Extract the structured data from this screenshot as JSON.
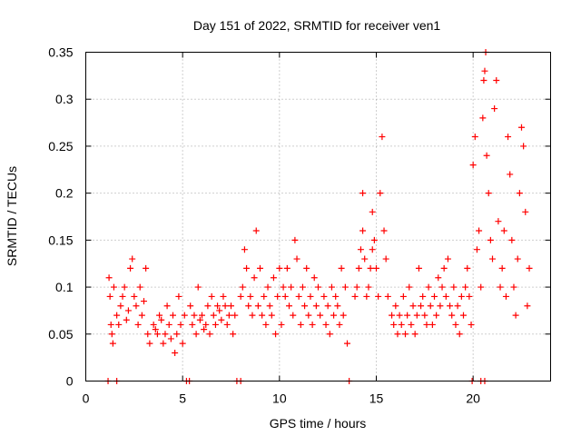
{
  "chart_data": {
    "type": "scatter",
    "title": "Day 151 of 2022, SRMTID for receiver ven1",
    "xlabel": "GPS time / hours",
    "ylabel": "SRMTID / TECUs",
    "xlim": [
      0,
      24
    ],
    "ylim": [
      0,
      0.35
    ],
    "xticks": [
      0,
      5,
      10,
      15,
      20
    ],
    "xtick_labels": [
      "0",
      "5",
      "10",
      "15",
      "20"
    ],
    "yticks": [
      0,
      0.05,
      0.1,
      0.15,
      0.2,
      0.25,
      0.3,
      0.35
    ],
    "ytick_labels": [
      "0",
      "0.05",
      "0.1",
      "0.15",
      "0.2",
      "0.25",
      "0.3",
      "0.35"
    ],
    "grid": true,
    "marker": "+",
    "color": "#ff0000",
    "series": [
      {
        "name": "SRMTID",
        "points": [
          [
            1.15,
            0.0
          ],
          [
            1.6,
            0.0
          ],
          [
            5.2,
            0.0
          ],
          [
            5.35,
            0.0
          ],
          [
            7.8,
            0.0
          ],
          [
            8.0,
            0.0
          ],
          [
            13.6,
            0.0
          ],
          [
            19.95,
            0.0
          ],
          [
            20.4,
            0.0
          ],
          [
            20.6,
            0.0
          ],
          [
            1.2,
            0.11
          ],
          [
            1.25,
            0.09
          ],
          [
            1.3,
            0.06
          ],
          [
            1.35,
            0.05
          ],
          [
            1.4,
            0.04
          ],
          [
            1.45,
            0.1
          ],
          [
            1.6,
            0.07
          ],
          [
            1.7,
            0.06
          ],
          [
            1.8,
            0.08
          ],
          [
            1.9,
            0.09
          ],
          [
            2.0,
            0.1
          ],
          [
            2.1,
            0.065
          ],
          [
            2.2,
            0.075
          ],
          [
            2.3,
            0.12
          ],
          [
            2.4,
            0.13
          ],
          [
            2.5,
            0.09
          ],
          [
            2.6,
            0.08
          ],
          [
            2.7,
            0.06
          ],
          [
            2.8,
            0.1
          ],
          [
            2.9,
            0.07
          ],
          [
            3.0,
            0.085
          ],
          [
            3.1,
            0.12
          ],
          [
            3.2,
            0.05
          ],
          [
            3.3,
            0.04
          ],
          [
            3.5,
            0.06
          ],
          [
            3.6,
            0.055
          ],
          [
            3.7,
            0.05
          ],
          [
            3.8,
            0.07
          ],
          [
            3.9,
            0.065
          ],
          [
            4.0,
            0.04
          ],
          [
            4.1,
            0.05
          ],
          [
            4.2,
            0.08
          ],
          [
            4.3,
            0.06
          ],
          [
            4.4,
            0.045
          ],
          [
            4.5,
            0.07
          ],
          [
            4.6,
            0.03
          ],
          [
            4.7,
            0.05
          ],
          [
            4.8,
            0.09
          ],
          [
            4.9,
            0.06
          ],
          [
            5.0,
            0.04
          ],
          [
            5.1,
            0.07
          ],
          [
            5.4,
            0.08
          ],
          [
            5.5,
            0.06
          ],
          [
            5.6,
            0.07
          ],
          [
            5.7,
            0.05
          ],
          [
            5.8,
            0.1
          ],
          [
            5.9,
            0.065
          ],
          [
            6.0,
            0.07
          ],
          [
            6.1,
            0.055
          ],
          [
            6.2,
            0.06
          ],
          [
            6.3,
            0.08
          ],
          [
            6.4,
            0.05
          ],
          [
            6.5,
            0.09
          ],
          [
            6.6,
            0.07
          ],
          [
            6.7,
            0.06
          ],
          [
            6.8,
            0.08
          ],
          [
            6.9,
            0.075
          ],
          [
            7.0,
            0.065
          ],
          [
            7.1,
            0.09
          ],
          [
            7.2,
            0.08
          ],
          [
            7.3,
            0.06
          ],
          [
            7.4,
            0.07
          ],
          [
            7.5,
            0.08
          ],
          [
            7.6,
            0.05
          ],
          [
            7.7,
            0.07
          ],
          [
            8.0,
            0.09
          ],
          [
            8.1,
            0.1
          ],
          [
            8.2,
            0.14
          ],
          [
            8.3,
            0.12
          ],
          [
            8.4,
            0.08
          ],
          [
            8.5,
            0.09
          ],
          [
            8.6,
            0.07
          ],
          [
            8.7,
            0.11
          ],
          [
            8.8,
            0.16
          ],
          [
            8.9,
            0.08
          ],
          [
            9.0,
            0.12
          ],
          [
            9.1,
            0.07
          ],
          [
            9.2,
            0.09
          ],
          [
            9.3,
            0.06
          ],
          [
            9.4,
            0.1
          ],
          [
            9.5,
            0.08
          ],
          [
            9.6,
            0.07
          ],
          [
            9.7,
            0.11
          ],
          [
            9.8,
            0.05
          ],
          [
            9.9,
            0.09
          ],
          [
            10.0,
            0.12
          ],
          [
            10.1,
            0.06
          ],
          [
            10.2,
            0.1
          ],
          [
            10.3,
            0.09
          ],
          [
            10.4,
            0.12
          ],
          [
            10.5,
            0.08
          ],
          [
            10.6,
            0.1
          ],
          [
            10.7,
            0.07
          ],
          [
            10.8,
            0.15
          ],
          [
            10.9,
            0.13
          ],
          [
            11.0,
            0.09
          ],
          [
            11.1,
            0.06
          ],
          [
            11.2,
            0.1
          ],
          [
            11.3,
            0.08
          ],
          [
            11.4,
            0.12
          ],
          [
            11.5,
            0.07
          ],
          [
            11.6,
            0.09
          ],
          [
            11.7,
            0.06
          ],
          [
            11.8,
            0.11
          ],
          [
            11.9,
            0.08
          ],
          [
            12.0,
            0.1
          ],
          [
            12.1,
            0.07
          ],
          [
            12.3,
            0.09
          ],
          [
            12.4,
            0.06
          ],
          [
            12.5,
            0.08
          ],
          [
            12.6,
            0.05
          ],
          [
            12.7,
            0.1
          ],
          [
            12.8,
            0.07
          ],
          [
            12.9,
            0.09
          ],
          [
            13.0,
            0.08
          ],
          [
            13.1,
            0.06
          ],
          [
            13.2,
            0.12
          ],
          [
            13.3,
            0.07
          ],
          [
            13.4,
            0.1
          ],
          [
            13.5,
            0.04
          ],
          [
            13.9,
            0.09
          ],
          [
            14.0,
            0.1
          ],
          [
            14.1,
            0.12
          ],
          [
            14.2,
            0.14
          ],
          [
            14.3,
            0.16
          ],
          [
            14.4,
            0.13
          ],
          [
            14.5,
            0.09
          ],
          [
            14.6,
            0.1
          ],
          [
            14.7,
            0.12
          ],
          [
            14.8,
            0.14
          ],
          [
            14.9,
            0.15
          ],
          [
            15.0,
            0.12
          ],
          [
            15.1,
            0.09
          ],
          [
            15.2,
            0.2
          ],
          [
            15.3,
            0.26
          ],
          [
            15.4,
            0.16
          ],
          [
            15.5,
            0.13
          ],
          [
            15.6,
            0.09
          ],
          [
            14.8,
            0.18
          ],
          [
            14.3,
            0.2
          ],
          [
            15.8,
            0.07
          ],
          [
            15.9,
            0.06
          ],
          [
            16.0,
            0.08
          ],
          [
            16.1,
            0.05
          ],
          [
            16.2,
            0.07
          ],
          [
            16.3,
            0.06
          ],
          [
            16.4,
            0.09
          ],
          [
            16.5,
            0.05
          ],
          [
            16.6,
            0.07
          ],
          [
            16.7,
            0.1
          ],
          [
            16.8,
            0.06
          ],
          [
            16.9,
            0.08
          ],
          [
            17.0,
            0.05
          ],
          [
            17.1,
            0.07
          ],
          [
            17.2,
            0.12
          ],
          [
            17.3,
            0.08
          ],
          [
            17.4,
            0.09
          ],
          [
            17.5,
            0.07
          ],
          [
            17.6,
            0.06
          ],
          [
            17.7,
            0.1
          ],
          [
            17.8,
            0.08
          ],
          [
            17.9,
            0.06
          ],
          [
            18.0,
            0.09
          ],
          [
            18.1,
            0.07
          ],
          [
            18.2,
            0.11
          ],
          [
            18.3,
            0.08
          ],
          [
            18.4,
            0.1
          ],
          [
            18.5,
            0.12
          ],
          [
            18.6,
            0.09
          ],
          [
            18.7,
            0.13
          ],
          [
            18.8,
            0.08
          ],
          [
            18.9,
            0.07
          ],
          [
            19.0,
            0.1
          ],
          [
            19.1,
            0.06
          ],
          [
            19.2,
            0.08
          ],
          [
            19.3,
            0.05
          ],
          [
            19.4,
            0.09
          ],
          [
            19.5,
            0.07
          ],
          [
            19.6,
            0.1
          ],
          [
            19.7,
            0.12
          ],
          [
            19.8,
            0.09
          ],
          [
            19.9,
            0.06
          ],
          [
            20.0,
            0.23
          ],
          [
            20.1,
            0.26
          ],
          [
            20.2,
            0.14
          ],
          [
            20.3,
            0.16
          ],
          [
            20.4,
            0.1
          ],
          [
            20.5,
            0.28
          ],
          [
            20.55,
            0.32
          ],
          [
            20.6,
            0.33
          ],
          [
            20.65,
            0.35
          ],
          [
            20.7,
            0.24
          ],
          [
            20.8,
            0.2
          ],
          [
            20.9,
            0.15
          ],
          [
            21.0,
            0.13
          ],
          [
            21.1,
            0.29
          ],
          [
            21.2,
            0.32
          ],
          [
            21.3,
            0.17
          ],
          [
            21.4,
            0.1
          ],
          [
            21.5,
            0.12
          ],
          [
            21.6,
            0.16
          ],
          [
            21.7,
            0.09
          ],
          [
            21.8,
            0.26
          ],
          [
            21.9,
            0.22
          ],
          [
            22.0,
            0.15
          ],
          [
            22.1,
            0.1
          ],
          [
            22.2,
            0.07
          ],
          [
            22.3,
            0.13
          ],
          [
            22.4,
            0.2
          ],
          [
            22.5,
            0.27
          ],
          [
            22.6,
            0.25
          ],
          [
            22.7,
            0.18
          ],
          [
            22.8,
            0.08
          ],
          [
            22.9,
            0.12
          ]
        ]
      }
    ]
  }
}
